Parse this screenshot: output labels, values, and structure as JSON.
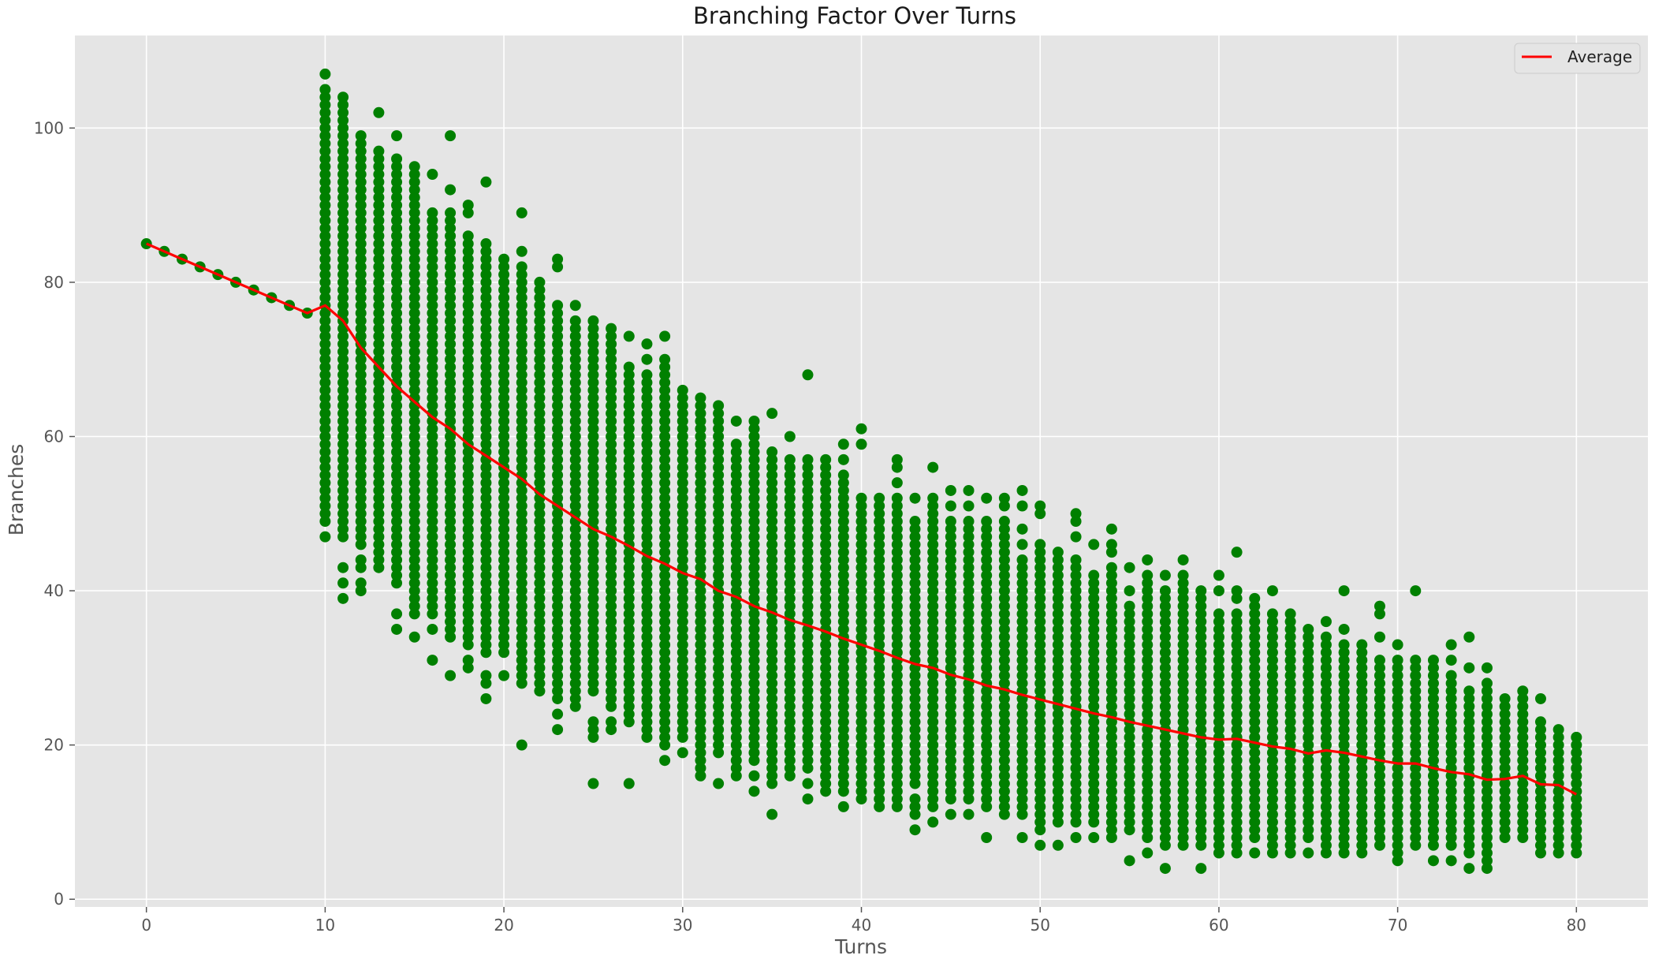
{
  "chart_data": {
    "type": "scatter",
    "title": "Branching Factor Over Turns",
    "xlabel": "Turns",
    "ylabel": "Branches",
    "xlim": [
      -4,
      84
    ],
    "ylim": [
      -1,
      112
    ],
    "xticks": [
      0,
      10,
      20,
      30,
      40,
      50,
      60,
      70,
      80
    ],
    "yticks": [
      0,
      20,
      40,
      60,
      80,
      100
    ],
    "grid": true,
    "legend_position": "top-right",
    "colors": {
      "background": "#e5e5e5",
      "grid": "#ffffff",
      "scatter": "#008000",
      "average": "#ff0000"
    },
    "scatter_series": {
      "name": "",
      "note_columns": "for each turn x: all integer branch values from min to max, plus listed outliers",
      "columns": [
        {
          "x": 0,
          "min": 85,
          "max": 85,
          "extra": []
        },
        {
          "x": 1,
          "min": 84,
          "max": 84,
          "extra": []
        },
        {
          "x": 2,
          "min": 83,
          "max": 83,
          "extra": []
        },
        {
          "x": 3,
          "min": 82,
          "max": 82,
          "extra": []
        },
        {
          "x": 4,
          "min": 81,
          "max": 81,
          "extra": []
        },
        {
          "x": 5,
          "min": 80,
          "max": 80,
          "extra": []
        },
        {
          "x": 6,
          "min": 79,
          "max": 79,
          "extra": []
        },
        {
          "x": 7,
          "min": 78,
          "max": 78,
          "extra": []
        },
        {
          "x": 8,
          "min": 77,
          "max": 77,
          "extra": []
        },
        {
          "x": 9,
          "min": 76,
          "max": 76,
          "extra": []
        },
        {
          "x": 10,
          "min": 49,
          "max": 105,
          "extra": [
            47,
            107
          ]
        },
        {
          "x": 11,
          "min": 47,
          "max": 104,
          "extra": [
            39,
            41,
            43
          ]
        },
        {
          "x": 12,
          "min": 46,
          "max": 99,
          "extra": [
            40,
            41,
            43,
            44
          ]
        },
        {
          "x": 13,
          "min": 43,
          "max": 97,
          "extra": [
            102
          ]
        },
        {
          "x": 14,
          "min": 41,
          "max": 96,
          "extra": [
            35,
            37,
            99
          ]
        },
        {
          "x": 15,
          "min": 37,
          "max": 95,
          "extra": [
            34
          ]
        },
        {
          "x": 16,
          "min": 37,
          "max": 89,
          "extra": [
            31,
            35,
            94
          ]
        },
        {
          "x": 17,
          "min": 34,
          "max": 89,
          "extra": [
            29,
            92,
            99
          ]
        },
        {
          "x": 18,
          "min": 33,
          "max": 86,
          "extra": [
            30,
            31,
            89,
            90
          ]
        },
        {
          "x": 19,
          "min": 32,
          "max": 85,
          "extra": [
            26,
            28,
            29,
            93
          ]
        },
        {
          "x": 20,
          "min": 32,
          "max": 83,
          "extra": [
            29
          ]
        },
        {
          "x": 21,
          "min": 28,
          "max": 82,
          "extra": [
            20,
            84,
            89
          ]
        },
        {
          "x": 22,
          "min": 27,
          "max": 80,
          "extra": []
        },
        {
          "x": 23,
          "min": 27,
          "max": 77,
          "extra": [
            22,
            24,
            26,
            82,
            83
          ]
        },
        {
          "x": 24,
          "min": 25,
          "max": 75,
          "extra": [
            77
          ]
        },
        {
          "x": 25,
          "min": 27,
          "max": 75,
          "extra": [
            15,
            21,
            22,
            23
          ]
        },
        {
          "x": 26,
          "min": 25,
          "max": 74,
          "extra": [
            22,
            23
          ]
        },
        {
          "x": 27,
          "min": 23,
          "max": 69,
          "extra": [
            15,
            73
          ]
        },
        {
          "x": 28,
          "min": 21,
          "max": 68,
          "extra": [
            70,
            72
          ]
        },
        {
          "x": 29,
          "min": 20,
          "max": 70,
          "extra": [
            18,
            73
          ]
        },
        {
          "x": 30,
          "min": 21,
          "max": 66,
          "extra": [
            19
          ]
        },
        {
          "x": 31,
          "min": 18,
          "max": 65,
          "extra": [
            16,
            17
          ]
        },
        {
          "x": 32,
          "min": 19,
          "max": 64,
          "extra": [
            15
          ]
        },
        {
          "x": 33,
          "min": 16,
          "max": 59,
          "extra": [
            62
          ]
        },
        {
          "x": 34,
          "min": 18,
          "max": 62,
          "extra": [
            14,
            16
          ]
        },
        {
          "x": 35,
          "min": 15,
          "max": 58,
          "extra": [
            11,
            63
          ]
        },
        {
          "x": 36,
          "min": 16,
          "max": 57,
          "extra": [
            60
          ]
        },
        {
          "x": 37,
          "min": 17,
          "max": 57,
          "extra": [
            13,
            15,
            68
          ]
        },
        {
          "x": 38,
          "min": 14,
          "max": 57,
          "extra": []
        },
        {
          "x": 39,
          "min": 15,
          "max": 55,
          "extra": [
            12,
            14,
            57,
            59
          ]
        },
        {
          "x": 40,
          "min": 13,
          "max": 52,
          "extra": [
            59,
            61
          ]
        },
        {
          "x": 41,
          "min": 12,
          "max": 52,
          "extra": []
        },
        {
          "x": 42,
          "min": 12,
          "max": 52,
          "extra": [
            54,
            56,
            57
          ]
        },
        {
          "x": 43,
          "min": 15,
          "max": 49,
          "extra": [
            9,
            11,
            12,
            13,
            52
          ]
        },
        {
          "x": 44,
          "min": 12,
          "max": 52,
          "extra": [
            10,
            56
          ]
        },
        {
          "x": 45,
          "min": 13,
          "max": 49,
          "extra": [
            11,
            51,
            53
          ]
        },
        {
          "x": 46,
          "min": 13,
          "max": 49,
          "extra": [
            11,
            51,
            53
          ]
        },
        {
          "x": 47,
          "min": 12,
          "max": 49,
          "extra": [
            8,
            52
          ]
        },
        {
          "x": 48,
          "min": 11,
          "max": 49,
          "extra": [
            51,
            52
          ]
        },
        {
          "x": 49,
          "min": 11,
          "max": 44,
          "extra": [
            8,
            46,
            48,
            51,
            53
          ]
        },
        {
          "x": 50,
          "min": 9,
          "max": 46,
          "extra": [
            7,
            50,
            51
          ]
        },
        {
          "x": 51,
          "min": 10,
          "max": 45,
          "extra": [
            7
          ]
        },
        {
          "x": 52,
          "min": 10,
          "max": 44,
          "extra": [
            8,
            47,
            49,
            50
          ]
        },
        {
          "x": 53,
          "min": 10,
          "max": 42,
          "extra": [
            8,
            46
          ]
        },
        {
          "x": 54,
          "min": 8,
          "max": 43,
          "extra": [
            45,
            46,
            48
          ]
        },
        {
          "x": 55,
          "min": 9,
          "max": 38,
          "extra": [
            5,
            40,
            43
          ]
        },
        {
          "x": 56,
          "min": 8,
          "max": 42,
          "extra": [
            6,
            44
          ]
        },
        {
          "x": 57,
          "min": 7,
          "max": 40,
          "extra": [
            4,
            42
          ]
        },
        {
          "x": 58,
          "min": 7,
          "max": 42,
          "extra": [
            44
          ]
        },
        {
          "x": 59,
          "min": 7,
          "max": 40,
          "extra": [
            4
          ]
        },
        {
          "x": 60,
          "min": 6,
          "max": 37,
          "extra": [
            40,
            42
          ]
        },
        {
          "x": 61,
          "min": 6,
          "max": 37,
          "extra": [
            39,
            40,
            45
          ]
        },
        {
          "x": 62,
          "min": 8,
          "max": 39,
          "extra": [
            6
          ]
        },
        {
          "x": 63,
          "min": 6,
          "max": 37,
          "extra": [
            40
          ]
        },
        {
          "x": 64,
          "min": 6,
          "max": 37,
          "extra": []
        },
        {
          "x": 65,
          "min": 8,
          "max": 35,
          "extra": [
            6
          ]
        },
        {
          "x": 66,
          "min": 6,
          "max": 34,
          "extra": [
            36
          ]
        },
        {
          "x": 67,
          "min": 6,
          "max": 33,
          "extra": [
            35,
            40
          ]
        },
        {
          "x": 68,
          "min": 6,
          "max": 33,
          "extra": []
        },
        {
          "x": 69,
          "min": 7,
          "max": 31,
          "extra": [
            34,
            37,
            38
          ]
        },
        {
          "x": 70,
          "min": 6,
          "max": 31,
          "extra": [
            5,
            33
          ]
        },
        {
          "x": 71,
          "min": 7,
          "max": 31,
          "extra": [
            40
          ]
        },
        {
          "x": 72,
          "min": 7,
          "max": 31,
          "extra": [
            5
          ]
        },
        {
          "x": 73,
          "min": 7,
          "max": 29,
          "extra": [
            5,
            31,
            33
          ]
        },
        {
          "x": 74,
          "min": 6,
          "max": 27,
          "extra": [
            4,
            30,
            34
          ]
        },
        {
          "x": 75,
          "min": 5,
          "max": 28,
          "extra": [
            4,
            30
          ]
        },
        {
          "x": 76,
          "min": 8,
          "max": 26,
          "extra": []
        },
        {
          "x": 77,
          "min": 8,
          "max": 27,
          "extra": []
        },
        {
          "x": 78,
          "min": 6,
          "max": 23,
          "extra": [
            26
          ]
        },
        {
          "x": 79,
          "min": 6,
          "max": 22,
          "extra": []
        },
        {
          "x": 80,
          "min": 6,
          "max": 21,
          "extra": []
        }
      ]
    },
    "series": [
      {
        "name": "Average",
        "x": [
          0,
          1,
          2,
          3,
          4,
          5,
          6,
          7,
          8,
          9,
          10,
          11,
          12,
          13,
          14,
          15,
          16,
          17,
          18,
          19,
          20,
          21,
          22,
          23,
          24,
          25,
          26,
          27,
          28,
          29,
          30,
          31,
          32,
          33,
          34,
          35,
          36,
          37,
          38,
          39,
          40,
          41,
          42,
          43,
          44,
          45,
          46,
          47,
          48,
          49,
          50,
          51,
          52,
          53,
          54,
          55,
          56,
          57,
          58,
          59,
          60,
          61,
          62,
          63,
          64,
          65,
          66,
          67,
          68,
          69,
          70,
          71,
          72,
          73,
          74,
          75,
          76,
          77,
          78,
          79,
          80
        ],
        "y": [
          85,
          84,
          83,
          82,
          81,
          80,
          79,
          78,
          77,
          76,
          77,
          75,
          71.5,
          69,
          66.5,
          64.5,
          62.5,
          61,
          59,
          57.5,
          56,
          54.5,
          52.5,
          51,
          49.5,
          48,
          47,
          45.8,
          44.5,
          43.5,
          42.3,
          41.5,
          40,
          39.2,
          38,
          37.2,
          36.2,
          35.5,
          34.7,
          33.8,
          33,
          32.2,
          31.3,
          30.5,
          30,
          29.1,
          28.5,
          27.7,
          27.2,
          26.5,
          25.9,
          25.3,
          24.7,
          24.1,
          23.6,
          23,
          22.5,
          22,
          21.5,
          21,
          20.7,
          20.8,
          20.3,
          19.8,
          19.5,
          18.9,
          19.3,
          19,
          18.5,
          18,
          17.6,
          17.6,
          17,
          16.5,
          16.2,
          15.5,
          15.6,
          16,
          14.9,
          14.8,
          13.6
        ]
      }
    ]
  }
}
